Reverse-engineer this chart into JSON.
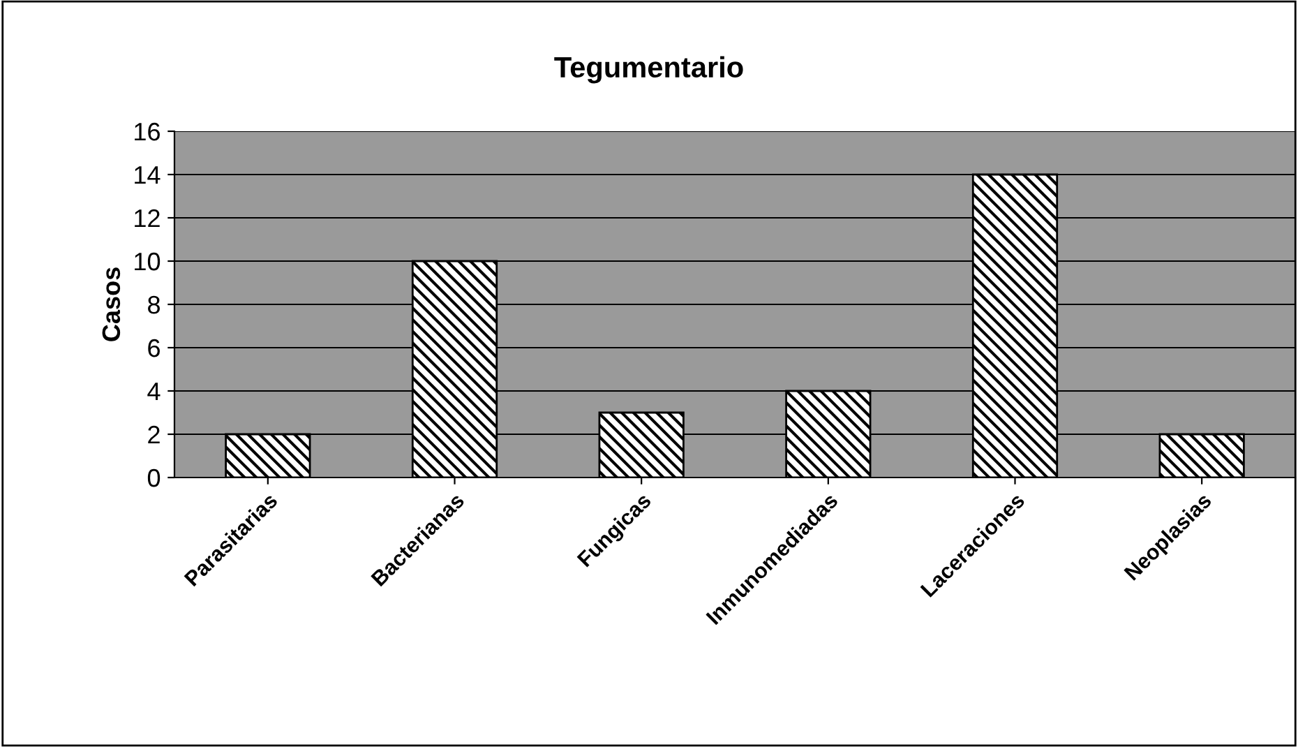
{
  "chart_data": {
    "type": "bar",
    "title": "Tegumentario",
    "ylabel": "Casos",
    "categories": [
      "Parasitarias",
      "Bacterianas",
      "Fungicas",
      "Inmunomediadas",
      "Laceraciones",
      "Neoplasias"
    ],
    "values": [
      2,
      10,
      3,
      4,
      14,
      2
    ],
    "color": "#000000",
    "ylim": [
      0,
      16
    ],
    "yticks": [
      0,
      2,
      4,
      6,
      8,
      10,
      12,
      14,
      16
    ],
    "grid": "y",
    "legend": false
  }
}
